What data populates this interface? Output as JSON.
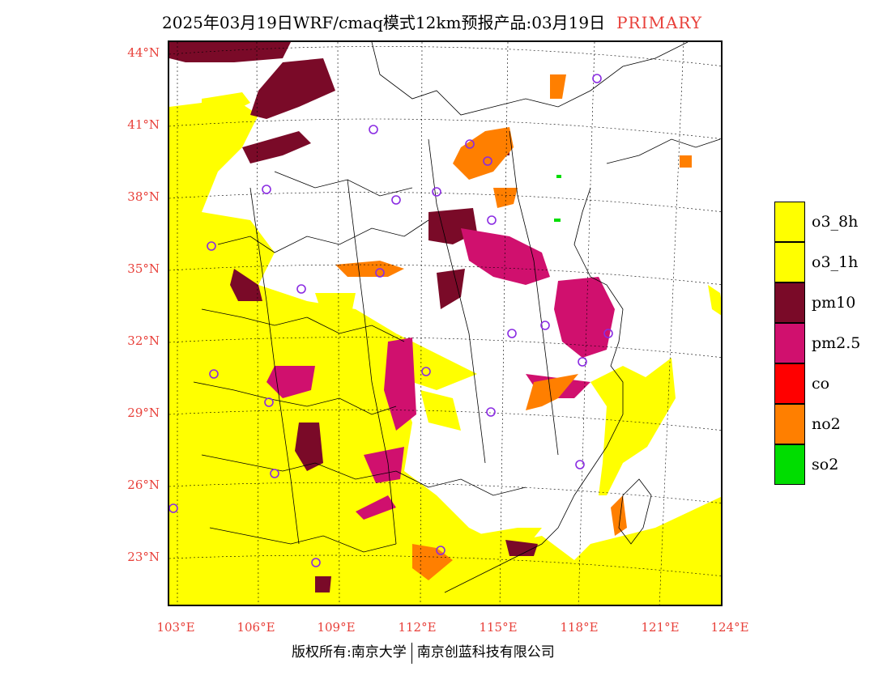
{
  "title": {
    "main": "2025年03月19日WRF/cmaq模式12km预报产品:03月19日",
    "tag": "PRIMARY"
  },
  "map": {
    "lat_labels": [
      "44°N",
      "41°N",
      "38°N",
      "35°N",
      "32°N",
      "29°N",
      "26°N",
      "23°N"
    ],
    "lon_labels": [
      "103°E",
      "106°E",
      "109°E",
      "112°E",
      "115°E",
      "118°E",
      "121°E",
      "124°E"
    ]
  },
  "legend": [
    {
      "label": "o3_8h",
      "color": "#ffff00"
    },
    {
      "label": "o3_1h",
      "color": "#ffff00"
    },
    {
      "label": "pm10",
      "color": "#7a0a28"
    },
    {
      "label": "pm2.5",
      "color": "#d0106e"
    },
    {
      "label": "co",
      "color": "#ff0000"
    },
    {
      "label": "no2",
      "color": "#ff7f00"
    },
    {
      "label": "so2",
      "color": "#00dd00"
    }
  ],
  "footer": {
    "left": "版权所有:南京大学",
    "right": "南京创蓝科技有限公司"
  }
}
